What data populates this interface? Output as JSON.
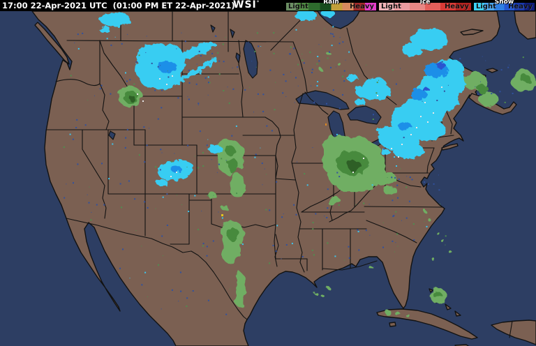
{
  "header": {
    "timestamp": "17:00 22-Apr-2021 UTC  (01:00 PM ET 22-Apr-2021)",
    "logo": "WSI",
    "logo_mark": "°"
  },
  "legend": {
    "groups": [
      {
        "name": "Rain",
        "light": "Light",
        "heavy": "Heavy",
        "colors": [
          "#6b8e63",
          "#4e8a41",
          "#2e6b2d",
          "#174c1e",
          "#c29f3a",
          "#d68a5e",
          "#a32c2c",
          "#e23cc8"
        ]
      },
      {
        "name": "Ice",
        "light": "Light",
        "heavy": "Heavy",
        "colors": [
          "#f2b4b8",
          "#eb9ba0",
          "#e88784",
          "#e35f5a",
          "#d83b36",
          "#b32420"
        ]
      },
      {
        "name": "Snow",
        "light": "Light",
        "heavy": "Heavy",
        "colors": [
          "#3cd2f5",
          "#4aa6ee",
          "#2f7fe3",
          "#2457d1",
          "#1a39aa",
          "#101d7a"
        ]
      }
    ]
  },
  "map": {
    "ocean_color": "#2d3e63",
    "land_color": "#7b6052",
    "border_color": "#121212",
    "radar_palette": {
      "rain_light": "#6fae63",
      "rain_mid": "#468a3c",
      "rain_dark": "#2d5f28",
      "snow_light": "#38cdf2",
      "snow_mid": "#1e8fe8",
      "snow_dark": "#2b55d0",
      "mix_white": "#e8e8e8",
      "hail_yellow": "#e2c51f",
      "hail_orange": "#dd8822",
      "noise_blue": "#31519e",
      "noise_green": "#4f8f4f",
      "noise_cyan": "#3cc8f0"
    }
  }
}
